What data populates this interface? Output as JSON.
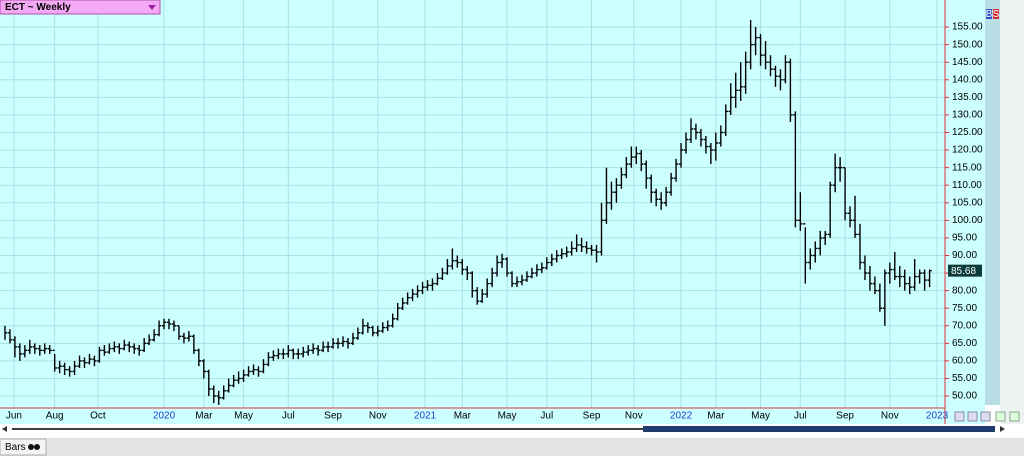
{
  "chart_data": {
    "type": "ohlc",
    "title": "ECT ~ Weekly",
    "color": "#000000",
    "grid": true,
    "close": [
      68,
      66,
      64,
      62,
      63,
      64,
      63.5,
      63,
      63.5,
      63,
      58,
      58.5,
      57.5,
      57,
      58.5,
      60,
      59.5,
      60.5,
      60,
      63,
      62.5,
      63.5,
      64,
      63.5,
      64.5,
      64,
      63.5,
      63,
      65,
      66,
      67.5,
      70,
      71,
      70.5,
      70,
      67,
      66.5,
      67,
      63,
      60,
      57,
      52,
      50,
      49.5,
      51.5,
      53,
      54.5,
      55,
      56,
      57,
      57.5,
      57,
      59,
      61,
      61.5,
      62,
      62,
      63,
      62,
      62,
      62.5,
      63,
      63.5,
      63,
      64,
      64,
      65,
      65,
      65.5,
      65,
      66.5,
      68,
      70,
      69.5,
      68,
      68.5,
      69.5,
      70,
      72,
      75,
      76.5,
      78,
      79,
      80,
      81,
      81.5,
      82,
      83.5,
      85,
      87,
      88.5,
      88,
      86,
      85,
      80,
      77,
      79,
      82,
      85,
      88,
      89,
      85,
      82,
      82.5,
      83,
      84,
      85,
      86,
      86.5,
      88,
      89,
      90,
      90.5,
      91,
      92,
      93,
      92.5,
      92,
      91.5,
      91,
      100,
      105,
      108,
      110,
      113,
      116,
      118,
      119,
      116,
      112,
      108,
      106,
      105,
      108,
      112,
      116,
      120,
      123,
      126,
      125,
      123,
      121,
      120,
      122,
      125,
      131,
      135,
      137,
      138,
      145,
      150,
      152,
      147,
      145,
      143,
      141,
      140,
      145,
      130,
      100,
      99,
      88,
      90,
      92,
      95,
      96,
      110,
      115,
      115,
      102,
      100,
      96,
      88,
      85,
      82,
      80,
      75,
      85,
      86,
      84,
      84,
      82,
      81,
      84,
      85,
      83,
      85.68
    ],
    "high": [
      70,
      69,
      67,
      65,
      64.5,
      66,
      65,
      64.5,
      65,
      64.5,
      62,
      60,
      59.5,
      58.5,
      60,
      61.5,
      61,
      62,
      61.5,
      64,
      64.5,
      65,
      65.5,
      65,
      66,
      65.5,
      65,
      64.5,
      66.5,
      67.5,
      69,
      71.5,
      72,
      72,
      71.5,
      70,
      68,
      68.5,
      67.5,
      63.5,
      60.5,
      57.5,
      53,
      51.5,
      53,
      55,
      56,
      57,
      57.5,
      58.5,
      59,
      58.5,
      60.5,
      62.5,
      63,
      63.5,
      63.5,
      64.5,
      63.5,
      63.5,
      64,
      64.5,
      65,
      64.5,
      65.5,
      65.5,
      66.5,
      66.5,
      67,
      66.5,
      68,
      69.5,
      72,
      71,
      70,
      70,
      71,
      71.5,
      73.5,
      76.5,
      78,
      79.5,
      80.5,
      81.5,
      82.5,
      83,
      83.5,
      85,
      86.5,
      89,
      92,
      90,
      89,
      87,
      85.5,
      81,
      80.5,
      83.5,
      86.5,
      90,
      90.5,
      89.5,
      85.5,
      84,
      84.5,
      85.5,
      86.5,
      87.5,
      88,
      89.5,
      90.5,
      91.5,
      92,
      92.5,
      94,
      96,
      95,
      94,
      93,
      93,
      105,
      115,
      111,
      112,
      115,
      118,
      121,
      121,
      120,
      117,
      113,
      109,
      108,
      109.5,
      113.5,
      117.5,
      122,
      125,
      129,
      127.5,
      126,
      124,
      122,
      125,
      127,
      133,
      139,
      142,
      145,
      148,
      157,
      155,
      153,
      151,
      147,
      144,
      143,
      147,
      146,
      131,
      108,
      98,
      92,
      94,
      97,
      97,
      111,
      119,
      118,
      115,
      104,
      107,
      99,
      90,
      87,
      84,
      82,
      86,
      88,
      91,
      87,
      86,
      84,
      89,
      86,
      86,
      86
    ],
    "low": [
      66,
      65,
      61,
      60,
      61,
      62,
      62,
      61.5,
      62,
      62,
      57,
      56.5,
      56,
      55.5,
      56,
      58,
      58,
      59,
      58.5,
      59.5,
      61.5,
      62,
      62.5,
      62,
      63,
      62.5,
      62,
      61.5,
      62.5,
      64.5,
      65.5,
      67,
      69,
      69,
      68.5,
      66,
      65,
      65.5,
      62,
      58.5,
      55,
      50,
      48,
      47.5,
      49,
      51,
      52.5,
      53.5,
      54,
      55.5,
      56,
      55.5,
      56.5,
      58.5,
      60,
      60.5,
      60.5,
      61,
      60.5,
      60.5,
      61,
      61.5,
      62,
      61.5,
      62.5,
      62.5,
      63.5,
      63.5,
      64,
      63.5,
      64.5,
      66,
      67.5,
      68,
      67,
      67,
      68,
      68.5,
      69.5,
      71.5,
      74.5,
      76,
      77,
      78,
      79,
      80,
      80,
      81.5,
      83,
      84.5,
      86,
      86.5,
      84.5,
      83,
      78,
      76,
      76.5,
      78,
      81,
      84,
      86.5,
      84,
      81,
      81,
      81.5,
      82.5,
      83.5,
      84,
      85,
      86,
      87,
      88,
      89,
      89.5,
      90,
      91,
      91,
      90.5,
      90,
      88,
      90,
      99,
      103,
      105,
      109,
      112,
      115,
      116,
      114,
      109,
      105,
      104,
      103,
      104,
      107,
      111,
      115,
      119,
      122,
      123,
      121,
      119,
      116,
      117,
      121,
      124,
      130,
      132,
      134,
      136,
      143,
      147,
      144,
      143,
      141,
      138,
      137,
      139,
      128,
      98,
      97,
      82,
      86,
      88,
      90,
      93,
      95,
      108,
      111,
      100,
      98,
      95,
      86,
      83,
      80,
      79,
      74,
      70,
      82,
      83,
      81,
      80,
      79,
      80,
      82,
      80,
      81
    ],
    "xlim": [
      -1,
      189.1
    ],
    "ylim": [
      46.6,
      162.7
    ],
    "yticks": [
      {
        "value": 50,
        "label": "50.00"
      },
      {
        "value": 55,
        "label": "55.00"
      },
      {
        "value": 60,
        "label": "60.00"
      },
      {
        "value": 65,
        "label": "65.00"
      },
      {
        "value": 70,
        "label": "70.00"
      },
      {
        "value": 75,
        "label": "75.00"
      },
      {
        "value": 80,
        "label": "80.00"
      },
      {
        "value": 85,
        "label": "85.00"
      },
      {
        "value": 90,
        "label": "90.00"
      },
      {
        "value": 95,
        "label": "95.00"
      },
      {
        "value": 100,
        "label": "100.00"
      },
      {
        "value": 105,
        "label": "105.00"
      },
      {
        "value": 110,
        "label": "110.00"
      },
      {
        "value": 115,
        "label": "115.00"
      },
      {
        "value": 120,
        "label": "120.00"
      },
      {
        "value": 125,
        "label": "125.00"
      },
      {
        "value": 130,
        "label": "130.00"
      },
      {
        "value": 135,
        "label": "135.00"
      },
      {
        "value": 140,
        "label": "140.00"
      },
      {
        "value": 145,
        "label": "145.00"
      },
      {
        "value": 150,
        "label": "150.00"
      },
      {
        "value": 155,
        "label": "155.00"
      }
    ],
    "xticks": [
      {
        "value": 1.8,
        "label": "Jun"
      },
      {
        "value": 10,
        "label": "Aug"
      },
      {
        "value": 18.7,
        "label": "Oct"
      },
      {
        "value": 32,
        "label": "2020"
      },
      {
        "value": 40,
        "label": "Mar"
      },
      {
        "value": 48,
        "label": "May"
      },
      {
        "value": 57,
        "label": "Jul"
      },
      {
        "value": 66,
        "label": "Sep"
      },
      {
        "value": 75,
        "label": "Nov"
      },
      {
        "value": 84.5,
        "label": "2021"
      },
      {
        "value": 92,
        "label": "Mar"
      },
      {
        "value": 101,
        "label": "May"
      },
      {
        "value": 109,
        "label": "Jul"
      },
      {
        "value": 118,
        "label": "Sep"
      },
      {
        "value": 126.5,
        "label": "Nov"
      },
      {
        "value": 136,
        "label": "2022"
      },
      {
        "value": 143,
        "label": "Mar"
      },
      {
        "value": 152,
        "label": "May"
      },
      {
        "value": 160,
        "label": "Jul"
      },
      {
        "value": 169,
        "label": "Sep"
      },
      {
        "value": 178,
        "label": "Nov"
      },
      {
        "value": 187.5,
        "label": "2023"
      }
    ]
  },
  "ui": {
    "tab": "Bars",
    "buttons": [
      "B",
      "S"
    ]
  }
}
